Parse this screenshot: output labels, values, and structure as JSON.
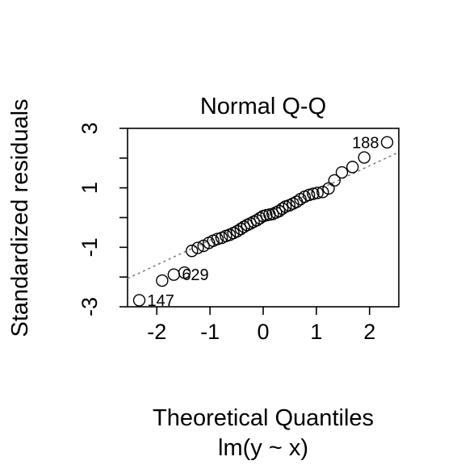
{
  "chart_data": {
    "type": "scatter",
    "title": "Normal Q-Q",
    "xlabel": "Theoretical Quantiles",
    "subtitle": "lm(y ~ x)",
    "ylabel": "Standardized residuals",
    "xlim": [
      -2.55,
      2.55
    ],
    "ylim": [
      -3.0,
      3.0
    ],
    "x_ticks": [
      -2,
      -1,
      0,
      1,
      2
    ],
    "x_tick_labels": [
      "-2",
      "-1",
      "0",
      "1",
      "2"
    ],
    "y_ticks": [
      -3,
      -2,
      -1,
      0,
      1,
      2,
      3
    ],
    "y_tick_labels": [
      "-3",
      "",
      "-1",
      "",
      "1",
      "",
      "3"
    ],
    "grid": false,
    "reference_line": {
      "style": "dotted",
      "color": "#808080",
      "points": [
        [
          -2.55,
          -2.05
        ],
        [
          2.55,
          2.2
        ]
      ]
    },
    "points": [
      {
        "x": -2.33,
        "y": -2.78
      },
      {
        "x": -1.9,
        "y": -2.12
      },
      {
        "x": -1.68,
        "y": -1.92
      },
      {
        "x": -1.48,
        "y": -1.85
      },
      {
        "x": -1.34,
        "y": -1.12
      },
      {
        "x": -1.23,
        "y": -1.02
      },
      {
        "x": -1.12,
        "y": -0.95
      },
      {
        "x": -1.02,
        "y": -0.85
      },
      {
        "x": -0.94,
        "y": -0.78
      },
      {
        "x": -0.86,
        "y": -0.72
      },
      {
        "x": -0.78,
        "y": -0.68
      },
      {
        "x": -0.7,
        "y": -0.62
      },
      {
        "x": -0.63,
        "y": -0.58
      },
      {
        "x": -0.56,
        "y": -0.52
      },
      {
        "x": -0.49,
        "y": -0.46
      },
      {
        "x": -0.42,
        "y": -0.38
      },
      {
        "x": -0.36,
        "y": -0.31
      },
      {
        "x": -0.3,
        "y": -0.25
      },
      {
        "x": -0.24,
        "y": -0.2
      },
      {
        "x": -0.18,
        "y": -0.14
      },
      {
        "x": -0.12,
        "y": -0.09
      },
      {
        "x": -0.06,
        "y": -0.02
      },
      {
        "x": 0.0,
        "y": 0.05
      },
      {
        "x": 0.06,
        "y": 0.08
      },
      {
        "x": 0.12,
        "y": 0.1
      },
      {
        "x": 0.18,
        "y": 0.12
      },
      {
        "x": 0.24,
        "y": 0.17
      },
      {
        "x": 0.3,
        "y": 0.22
      },
      {
        "x": 0.36,
        "y": 0.3
      },
      {
        "x": 0.42,
        "y": 0.37
      },
      {
        "x": 0.49,
        "y": 0.41
      },
      {
        "x": 0.56,
        "y": 0.47
      },
      {
        "x": 0.63,
        "y": 0.53
      },
      {
        "x": 0.7,
        "y": 0.62
      },
      {
        "x": 0.78,
        "y": 0.7
      },
      {
        "x": 0.86,
        "y": 0.76
      },
      {
        "x": 0.94,
        "y": 0.8
      },
      {
        "x": 1.02,
        "y": 0.83
      },
      {
        "x": 1.12,
        "y": 0.86
      },
      {
        "x": 1.23,
        "y": 0.98
      },
      {
        "x": 1.34,
        "y": 1.25
      },
      {
        "x": 1.48,
        "y": 1.52
      },
      {
        "x": 1.68,
        "y": 1.7
      },
      {
        "x": 1.9,
        "y": 2.02
      },
      {
        "x": 2.33,
        "y": 2.53
      }
    ],
    "annotations": [
      {
        "text": "188",
        "x": 2.33,
        "y": 2.53,
        "side": "left"
      },
      {
        "text": "629",
        "x": -1.68,
        "y": -1.92,
        "side": "right"
      },
      {
        "text": "147",
        "x": -2.33,
        "y": -2.78,
        "side": "right"
      }
    ]
  }
}
